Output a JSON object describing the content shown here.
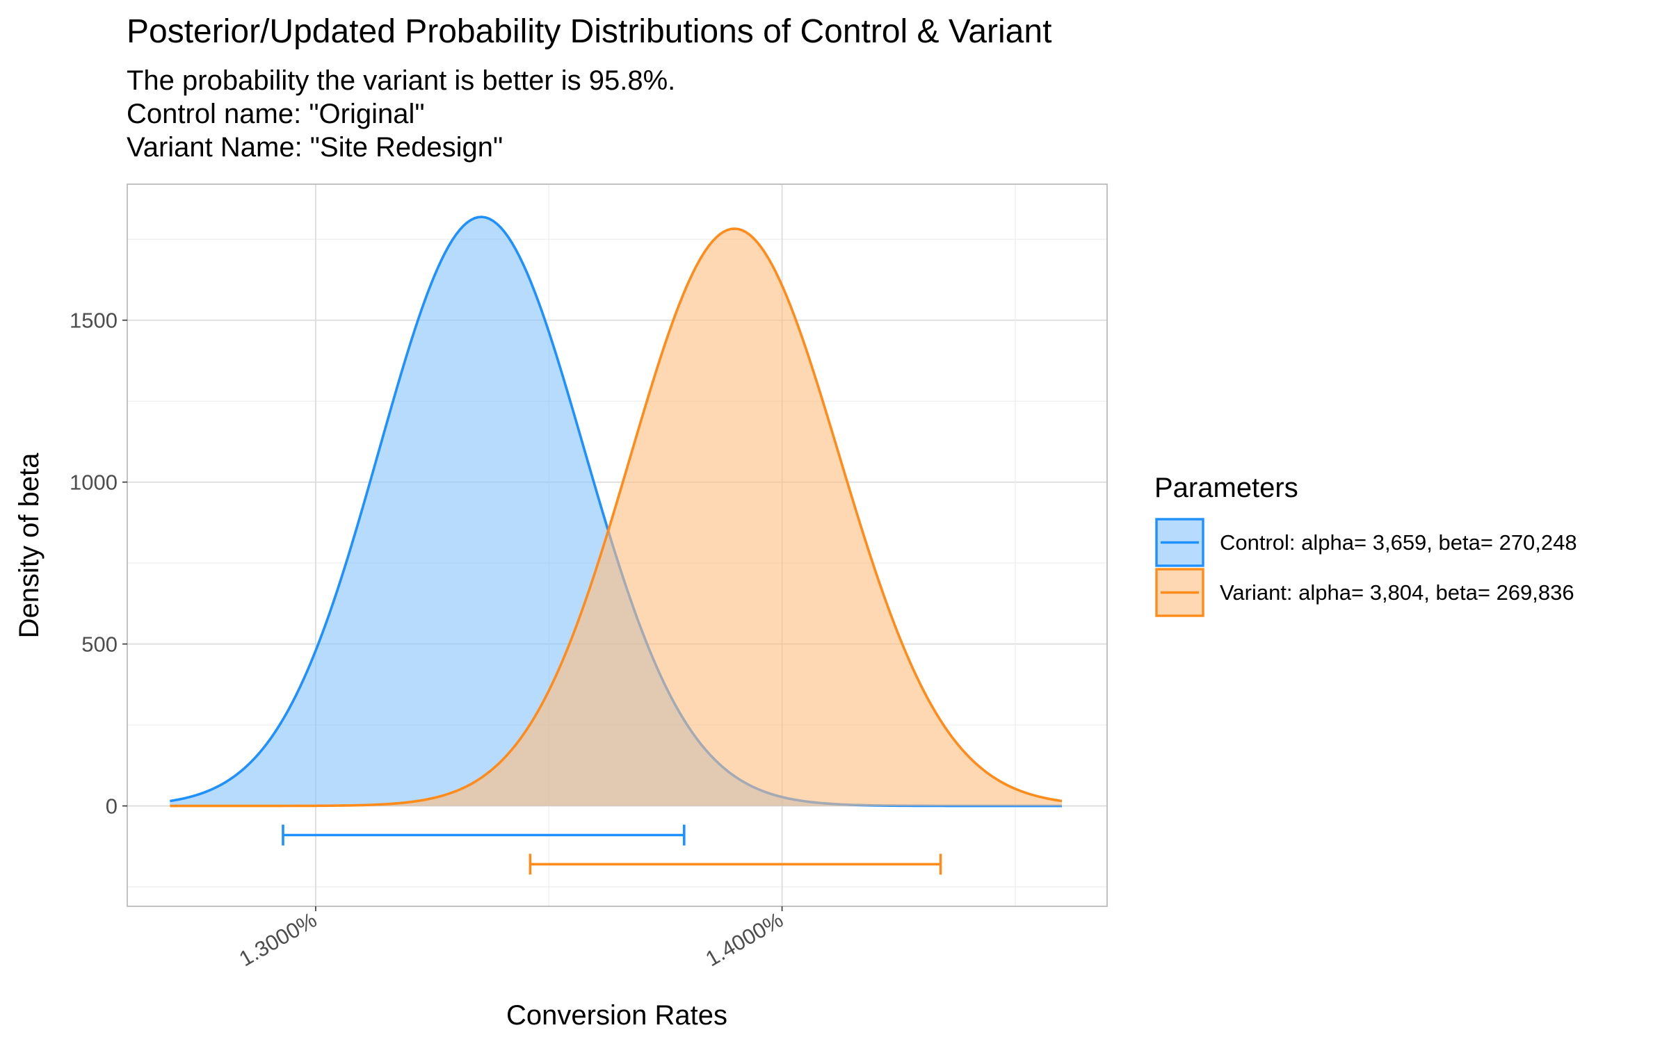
{
  "chart_data": {
    "type": "area",
    "title": "Posterior/Updated Probability Distributions of Control & Variant",
    "subtitle": [
      "The probability the variant is better is 95.8%.",
      "Control name: \"Original\"",
      "Variant Name: \"Site Redesign\""
    ],
    "xlabel": "Conversion Rates",
    "ylabel": "Density of beta",
    "x_tick_values": [
      0.013,
      0.014
    ],
    "x_tick_labels": [
      "1.3000%",
      "1.4000%"
    ],
    "y_tick_values": [
      0,
      500,
      1000,
      1500
    ],
    "y_tick_labels": [
      "0",
      "500",
      "1000",
      "1500"
    ],
    "xlim": [
      0.012596,
      0.014697
    ],
    "ylim": [
      -310,
      1920
    ],
    "grid": true,
    "legend": {
      "title": "Parameters",
      "placement": "right"
    },
    "series": [
      {
        "name": "Control: alpha= 3,659, beta= 270,248",
        "alpha": 3659,
        "beta": 270248,
        "x_range": [
          0.0126875,
          0.0146
        ],
        "interval": [
          0.01293,
          0.01379
        ],
        "line_color": "#1e90ff",
        "fill_color": "#87c3fb"
      },
      {
        "name": "Variant: alpha= 3,804, beta= 269,836",
        "alpha": 3804,
        "beta": 269836,
        "x_range": [
          0.0126875,
          0.0146
        ],
        "interval": [
          0.01346,
          0.01434
        ],
        "line_color": "#ff8c1a",
        "fill_color": "#fdbc80"
      }
    ]
  }
}
